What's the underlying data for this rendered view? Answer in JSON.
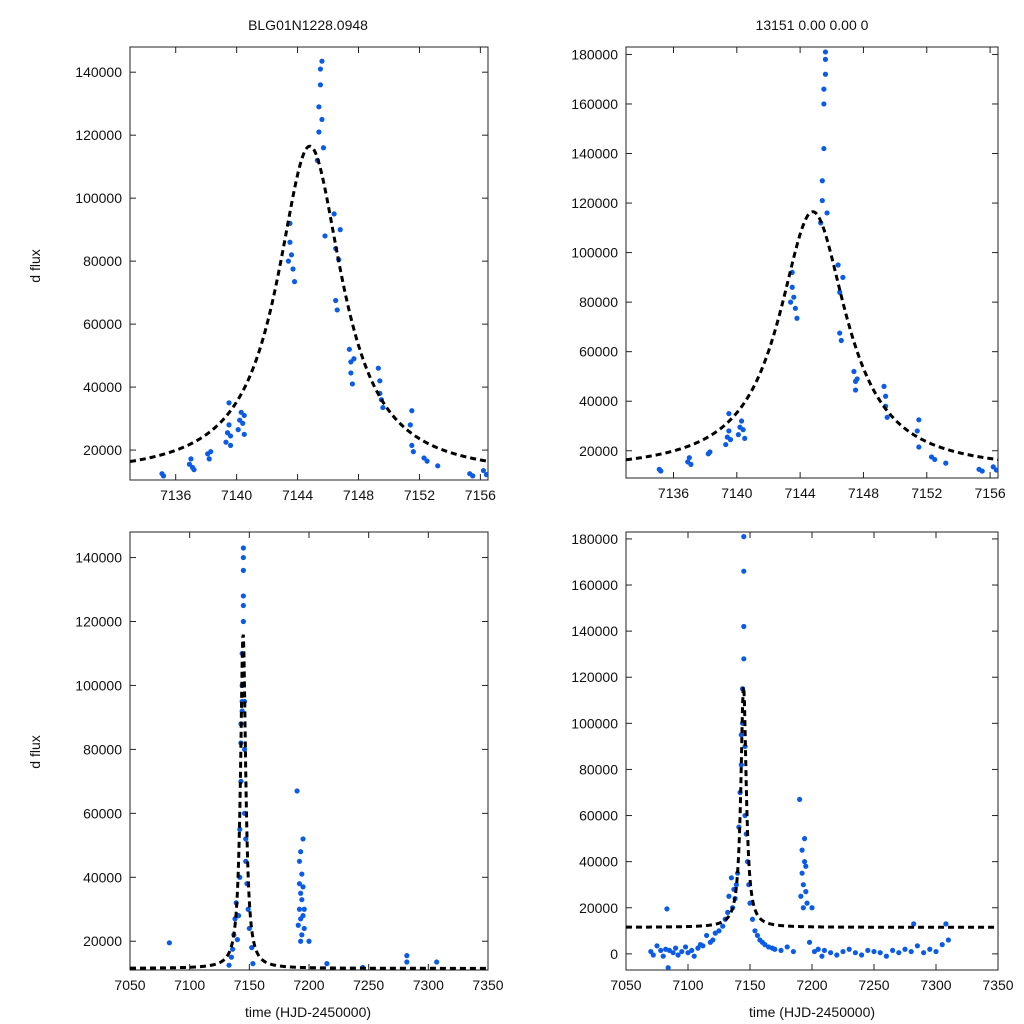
{
  "figure": {
    "title_left": "BLG01N1228.0948",
    "title_right": "13151  0.00  0.00  0",
    "ylabel": "d flux",
    "xlabel": "time (HJD-2450000)"
  },
  "model": {
    "t0": 7144.8,
    "amplitude": 105000,
    "baseline": 11500,
    "width": 2.6
  },
  "chart_data": [
    {
      "type": "scatter",
      "name": "zoom-left",
      "title": "BLG01N1228.0948",
      "xlabel": "",
      "ylabel": "d flux",
      "xlim": [
        7133,
        7156.5
      ],
      "ylim": [
        10500,
        148000
      ],
      "xticks": [
        7136,
        7140,
        7144,
        7148,
        7152,
        7156
      ],
      "yticks": [
        20000,
        40000,
        60000,
        80000,
        100000,
        120000,
        140000
      ],
      "x": [
        7135.1,
        7135.2,
        7136.9,
        7137.0,
        7137.1,
        7137.2,
        7138.1,
        7138.2,
        7138.3,
        7139.3,
        7139.4,
        7139.5,
        7139.5,
        7139.6,
        7139.6,
        7140.1,
        7140.2,
        7140.3,
        7140.4,
        7140.5,
        7140.5,
        7143.4,
        7143.5,
        7143.5,
        7143.6,
        7143.7,
        7143.8,
        7145.3,
        7145.4,
        7145.4,
        7145.5,
        7145.5,
        7145.6,
        7145.6,
        7145.7,
        7145.8,
        7146.4,
        7146.5,
        7146.5,
        7146.6,
        7146.7,
        7146.8,
        7147.4,
        7147.5,
        7147.5,
        7147.6,
        7147.7,
        7149.3,
        7149.4,
        7149.4,
        7149.5,
        7149.6,
        7151.4,
        7151.5,
        7151.5,
        7151.6,
        7152.3,
        7152.5,
        7153.2,
        7155.3,
        7155.5,
        7156.2,
        7156.4
      ],
      "y": [
        12500,
        11800,
        15500,
        17200,
        14500,
        13800,
        18800,
        17200,
        19500,
        22500,
        25500,
        28000,
        35000,
        24500,
        21500,
        26500,
        29500,
        32000,
        28500,
        25000,
        31000,
        80000,
        86000,
        92000,
        82000,
        77500,
        73500,
        112000,
        121000,
        129000,
        136000,
        141000,
        143500,
        125000,
        116000,
        88000,
        95000,
        84000,
        67500,
        64500,
        80500,
        90000,
        52000,
        48000,
        44500,
        41000,
        49000,
        46000,
        42000,
        38000,
        36000,
        33500,
        28000,
        32500,
        21500,
        19500,
        17500,
        16500,
        15000,
        12500,
        11800,
        13500,
        12200
      ]
    },
    {
      "type": "scatter",
      "name": "zoom-right",
      "title": "13151  0.00  0.00  0",
      "xlabel": "",
      "ylabel": "",
      "xlim": [
        7133,
        7156.5
      ],
      "ylim": [
        9000,
        183000
      ],
      "xticks": [
        7136,
        7140,
        7144,
        7148,
        7152,
        7156
      ],
      "yticks": [
        20000,
        40000,
        60000,
        80000,
        100000,
        120000,
        140000,
        160000,
        180000
      ],
      "x": [
        7135.1,
        7135.2,
        7136.9,
        7137.0,
        7137.1,
        7138.2,
        7138.3,
        7139.3,
        7139.4,
        7139.5,
        7139.5,
        7139.6,
        7140.1,
        7140.2,
        7140.3,
        7140.4,
        7140.5,
        7143.4,
        7143.5,
        7143.5,
        7143.6,
        7143.7,
        7143.8,
        7145.3,
        7145.4,
        7145.4,
        7145.5,
        7145.5,
        7145.5,
        7145.6,
        7145.6,
        7145.6,
        7145.7,
        7146.4,
        7146.5,
        7146.5,
        7146.6,
        7146.7,
        7147.4,
        7147.5,
        7147.5,
        7147.6,
        7149.3,
        7149.4,
        7149.4,
        7149.5,
        7151.4,
        7151.5,
        7151.5,
        7152.3,
        7152.5,
        7153.2,
        7155.3,
        7155.5,
        7156.2,
        7156.4
      ],
      "y": [
        12500,
        11800,
        15500,
        17200,
        14500,
        18800,
        19500,
        22500,
        25500,
        28000,
        35000,
        24500,
        26500,
        29500,
        32000,
        28500,
        25000,
        80000,
        86000,
        92000,
        82000,
        77500,
        73500,
        112000,
        121000,
        129000,
        142000,
        160000,
        166000,
        172000,
        178000,
        181000,
        116000,
        95000,
        84000,
        67500,
        64500,
        90000,
        52000,
        48000,
        44500,
        49000,
        46000,
        42000,
        38000,
        33500,
        28000,
        32500,
        21500,
        17500,
        16500,
        15000,
        12500,
        11800,
        13500,
        12200
      ]
    },
    {
      "type": "scatter",
      "name": "full-left",
      "title": "",
      "xlabel": "time (HJD-2450000)",
      "ylabel": "d flux",
      "xlim": [
        7050,
        7350
      ],
      "ylim": [
        11000,
        148000
      ],
      "xticks": [
        7050,
        7100,
        7150,
        7200,
        7250,
        7300,
        7350
      ],
      "yticks": [
        20000,
        40000,
        60000,
        80000,
        100000,
        120000,
        140000
      ],
      "x": [
        7083,
        7133,
        7135,
        7136,
        7137,
        7138,
        7139,
        7140,
        7141,
        7142,
        7142,
        7143,
        7143,
        7143,
        7144,
        7144,
        7144,
        7144,
        7145,
        7145,
        7145,
        7145,
        7145,
        7145,
        7146,
        7146,
        7146,
        7147,
        7147,
        7148,
        7149,
        7150,
        7152,
        7153,
        7190,
        7191,
        7192,
        7192,
        7192,
        7193,
        7193,
        7193,
        7193,
        7194,
        7194,
        7194,
        7195,
        7195,
        7195,
        7196,
        7196,
        7200,
        7215,
        7245,
        7282,
        7282,
        7307
      ],
      "y": [
        19500,
        12500,
        15000,
        17500,
        22000,
        27000,
        32000,
        20500,
        28000,
        40000,
        55000,
        70000,
        82000,
        88000,
        92000,
        95000,
        100000,
        110000,
        120000,
        128000,
        136000,
        143000,
        140000,
        125000,
        95000,
        80000,
        60000,
        52000,
        45000,
        38000,
        30000,
        24000,
        18000,
        13000,
        67000,
        25000,
        30000,
        38000,
        45000,
        20000,
        27000,
        35000,
        48000,
        22000,
        33000,
        41000,
        52000,
        28000,
        37000,
        24000,
        30000,
        20000,
        13000,
        11800,
        15500,
        13500,
        13500
      ]
    },
    {
      "type": "scatter",
      "name": "full-right",
      "title": "",
      "xlabel": "time (HJD-2450000)",
      "ylabel": "",
      "xlim": [
        7050,
        7350
      ],
      "ylim": [
        -7000,
        183000
      ],
      "xticks": [
        7050,
        7100,
        7150,
        7200,
        7250,
        7300,
        7350
      ],
      "yticks": [
        0,
        20000,
        40000,
        60000,
        80000,
        100000,
        120000,
        140000,
        160000,
        180000
      ],
      "x": [
        7070,
        7072,
        7075,
        7078,
        7080,
        7082,
        7083,
        7084,
        7085,
        7088,
        7090,
        7092,
        7095,
        7098,
        7100,
        7103,
        7105,
        7108,
        7110,
        7112,
        7115,
        7118,
        7120,
        7122,
        7125,
        7128,
        7130,
        7132,
        7133,
        7135,
        7136,
        7137,
        7138,
        7139,
        7140,
        7141,
        7142,
        7143,
        7143,
        7144,
        7144,
        7145,
        7145,
        7145,
        7145,
        7146,
        7146,
        7147,
        7148,
        7149,
        7150,
        7152,
        7154,
        7156,
        7158,
        7160,
        7162,
        7165,
        7168,
        7170,
        7175,
        7180,
        7185,
        7190,
        7191,
        7192,
        7192,
        7193,
        7193,
        7194,
        7194,
        7195,
        7195,
        7196,
        7198,
        7200,
        7202,
        7205,
        7208,
        7210,
        7215,
        7220,
        7225,
        7230,
        7235,
        7240,
        7245,
        7250,
        7255,
        7260,
        7265,
        7270,
        7275,
        7280,
        7282,
        7285,
        7290,
        7295,
        7300,
        7305,
        7308,
        7310
      ],
      "y": [
        1000,
        -500,
        3500,
        1500,
        -1000,
        2000,
        19500,
        -6000,
        1500,
        500,
        2500,
        -500,
        1000,
        3000,
        500,
        1500,
        -1000,
        2500,
        4000,
        3500,
        8000,
        5000,
        6000,
        9000,
        10000,
        12000,
        15000,
        18000,
        25000,
        33000,
        20000,
        28000,
        24000,
        30000,
        35000,
        55000,
        70000,
        82000,
        95000,
        100000,
        115000,
        128000,
        142000,
        166000,
        181000,
        90000,
        60000,
        52000,
        40000,
        30000,
        22000,
        15000,
        10000,
        8000,
        6000,
        5000,
        4000,
        3000,
        2500,
        2000,
        1500,
        3000,
        1000,
        67000,
        25000,
        35000,
        45000,
        20000,
        30000,
        40000,
        50000,
        27000,
        38000,
        22000,
        5000,
        20000,
        1000,
        2000,
        -1000,
        1500,
        500,
        -500,
        1000,
        2000,
        500,
        -500,
        1500,
        1000,
        500,
        -1000,
        1500,
        500,
        2000,
        1000,
        13000,
        3500,
        500,
        2000,
        1000,
        4000,
        13000,
        6000
      ]
    }
  ]
}
